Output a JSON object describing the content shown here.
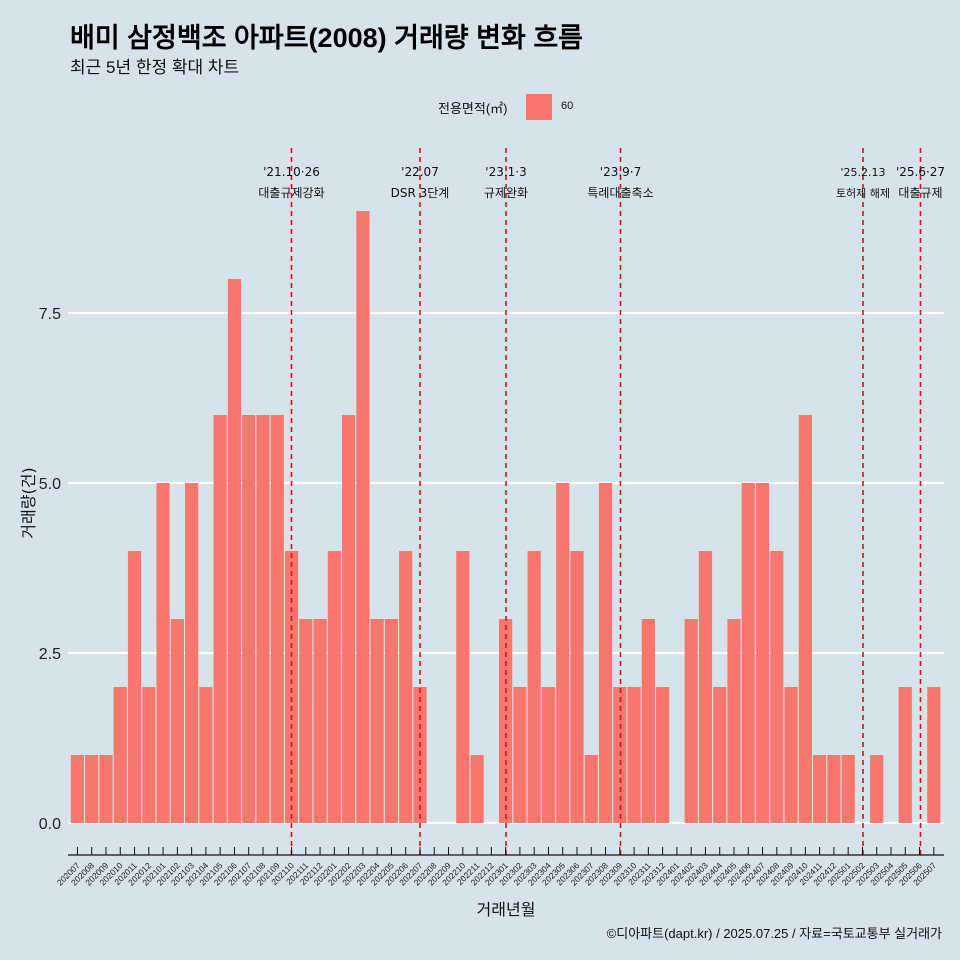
{
  "title": "배미 삼정백조 아파트(2008) 거래량 변화 흐름",
  "subtitle": "최근 5년 한정 확대 차트",
  "legend": {
    "title": "전용면적(㎡)",
    "label": "60",
    "color": "#f8766d"
  },
  "caption": "©디아파트(dapt.kr) / 2025.07.25 / 자료=국토교통부 실거래가",
  "colors": {
    "background": "#d6e3ea",
    "bar": "#f8766d",
    "grid": "#ffffff",
    "annotation_line": "#e01010"
  },
  "chart_data": {
    "type": "bar",
    "xlabel": "거래년월",
    "ylabel": "거래량(건)",
    "ylim": [
      -0.3,
      9.6
    ],
    "yticks": [
      0.0,
      2.5,
      5.0,
      7.5
    ],
    "ytick_labels": [
      "0.0",
      "2.5",
      "5.0",
      "7.5"
    ],
    "grid": "horizontal major lines",
    "categories": [
      "202007",
      "202008",
      "202009",
      "202010",
      "202011",
      "202012",
      "202101",
      "202102",
      "202103",
      "202104",
      "202105",
      "202106",
      "202107",
      "202108",
      "202109",
      "202110",
      "202111",
      "202112",
      "202201",
      "202202",
      "202203",
      "202204",
      "202205",
      "202206",
      "202207",
      "202208",
      "202209",
      "202210",
      "202211",
      "202212",
      "202301",
      "202302",
      "202303",
      "202304",
      "202305",
      "202306",
      "202307",
      "202308",
      "202309",
      "202310",
      "202311",
      "202312",
      "202401",
      "202402",
      "202403",
      "202404",
      "202405",
      "202406",
      "202407",
      "202408",
      "202409",
      "202410",
      "202411",
      "202412",
      "202501",
      "202502",
      "202503",
      "202504",
      "202505",
      "202506",
      "202507"
    ],
    "series": [
      {
        "name": "60",
        "values": [
          1,
          1,
          1,
          2,
          4,
          2,
          5,
          3,
          5,
          2,
          6,
          8,
          6,
          6,
          6,
          4,
          3,
          3,
          4,
          6,
          9,
          3,
          3,
          4,
          2,
          0,
          0,
          4,
          1,
          0,
          3,
          2,
          4,
          2,
          5,
          4,
          1,
          5,
          2,
          2,
          3,
          2,
          0,
          3,
          4,
          2,
          3,
          5,
          5,
          4,
          2,
          6,
          1,
          1,
          1,
          0,
          1,
          0,
          2,
          0,
          2
        ]
      }
    ],
    "annotations": [
      {
        "date": "'21.10·26",
        "label": "대출규제강화",
        "at": "202110"
      },
      {
        "date": "'22.07",
        "label": "DSR 3단계",
        "at": "202207"
      },
      {
        "date": "'23.1·3",
        "label": "규제완화",
        "at": "202301"
      },
      {
        "date": "'23.9·7",
        "label": "특례대출축소",
        "at": "202309"
      },
      {
        "date": "'25.2.13",
        "label": "토허제 해제",
        "at": "202502"
      },
      {
        "date": "'25.6·27",
        "label": "대출규제",
        "at": "202506"
      }
    ]
  }
}
